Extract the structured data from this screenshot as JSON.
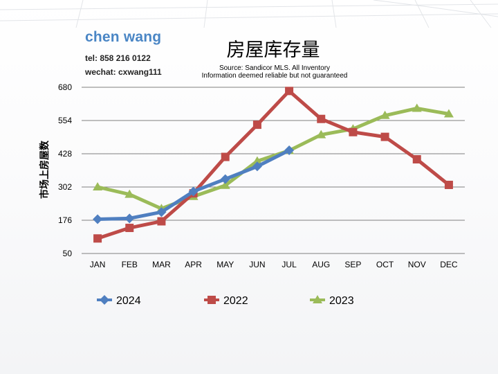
{
  "header": {
    "agent_name": "chen wang",
    "tel": "tel: 858 216 0122",
    "wechat": "wechat: cxwang111"
  },
  "chart_data": {
    "type": "line",
    "title": "房屋库存量",
    "subtitle": [
      "Source: Sandicor MLS. All Inventory",
      "Information deemed reliable but not guaranteed"
    ],
    "xlabel": "",
    "ylabel": "市场上房屋数",
    "categories": [
      "JAN",
      "FEB",
      "MAR",
      "APR",
      "MAY",
      "JUN",
      "JUL",
      "AUG",
      "SEP",
      "OCT",
      "NOV",
      "DEC"
    ],
    "yticks": [
      50,
      176,
      302,
      428,
      554,
      680
    ],
    "ylim": [
      50,
      680
    ],
    "grid": true,
    "legend": "bottom",
    "series": [
      {
        "name": "2024",
        "color": "#4f7fc0",
        "marker": "diamond",
        "values": [
          180,
          183,
          207,
          285,
          332,
          380,
          441,
          null,
          null,
          null,
          null,
          null
        ]
      },
      {
        "name": "2022",
        "color": "#be4b48",
        "marker": "square",
        "values": [
          107,
          147,
          172,
          278,
          416,
          538,
          666,
          560,
          510,
          492,
          407,
          310
        ]
      },
      {
        "name": "2023",
        "color": "#9bbb59",
        "marker": "triangle",
        "values": [
          302,
          274,
          220,
          266,
          308,
          400,
          440,
          500,
          522,
          573,
          600,
          579
        ]
      }
    ]
  }
}
